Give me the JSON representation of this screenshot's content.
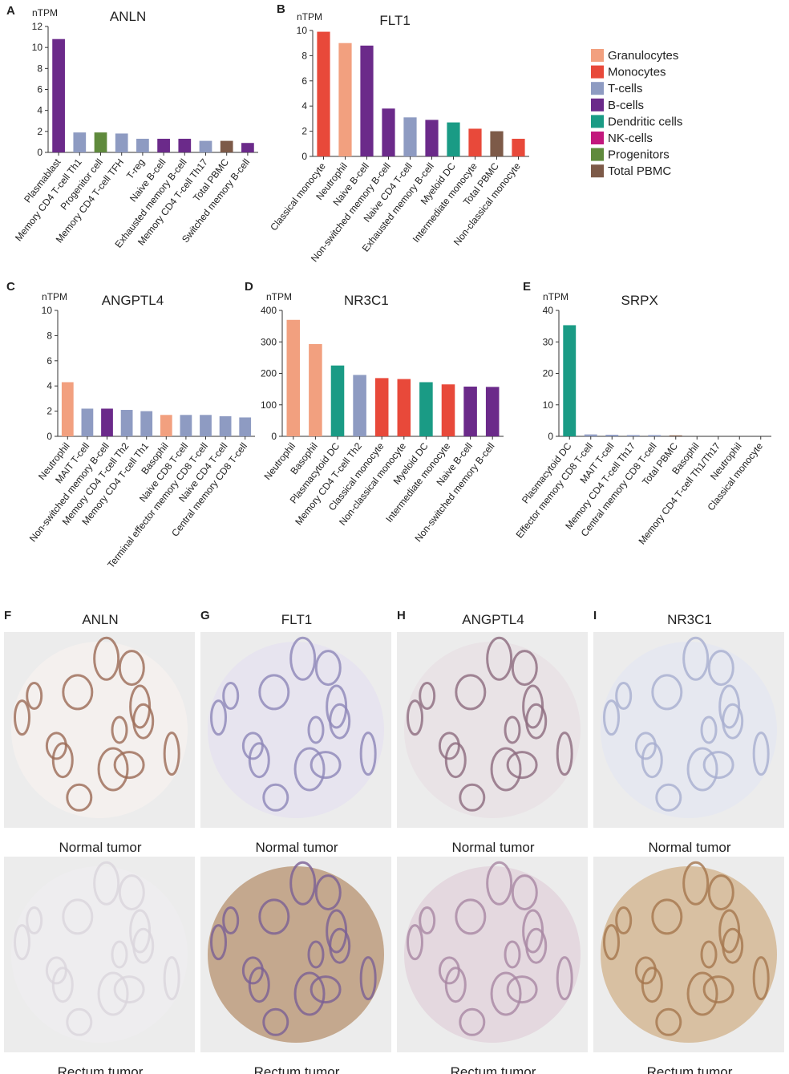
{
  "chart_data": [
    {
      "type": "bar",
      "label": "A",
      "title": "ANLN",
      "ylabel": "nTPM",
      "categories": [
        "Plasmablast",
        "Memory CD4 T-cell Th1",
        "Progenitor cell",
        "Memory CD4 T-cell TFH",
        "T-reg",
        "Naive B-cell",
        "Exhausted memory B-cell",
        "Memory CD4 T-cell Th17",
        "Total PBMC",
        "Switched memory B-cell"
      ],
      "values": [
        10.8,
        1.9,
        1.9,
        1.8,
        1.3,
        1.3,
        1.3,
        1.1,
        1.1,
        0.9
      ],
      "colors": [
        "#6b2a8a",
        "#8e9bc2",
        "#5f8a3c",
        "#8e9bc2",
        "#8e9bc2",
        "#6b2a8a",
        "#6b2a8a",
        "#8e9bc2",
        "#7d5a48",
        "#6b2a8a"
      ],
      "ylim": [
        0,
        12
      ],
      "yticks": [
        0,
        2,
        4,
        6,
        8,
        10,
        12
      ]
    },
    {
      "type": "bar",
      "label": "B",
      "title": "FLT1",
      "ylabel": "nTPM",
      "categories": [
        "Classical monocyte",
        "Neutrophil",
        "Naive B-cell",
        "Non-switched memory B-cell",
        "Naive CD4 T-cell",
        "Exhausted memory B-cell",
        "Myeloid DC",
        "Intermediate monocyte",
        "Total PBMC",
        "Non-classical monocyte"
      ],
      "values": [
        9.9,
        9.0,
        8.8,
        3.8,
        3.1,
        2.9,
        2.7,
        2.2,
        2.0,
        1.4
      ],
      "colors": [
        "#e8493a",
        "#f2a07f",
        "#6b2a8a",
        "#6b2a8a",
        "#8e9bc2",
        "#6b2a8a",
        "#1a9b85",
        "#e8493a",
        "#7d5a48",
        "#e8493a"
      ],
      "ylim": [
        0,
        10
      ],
      "yticks": [
        0,
        2,
        4,
        6,
        8,
        10
      ]
    },
    {
      "type": "bar",
      "label": "C",
      "title": "ANGPTL4",
      "ylabel": "nTPM",
      "categories": [
        "Neutrophil",
        "MAIT T-cell",
        "Non-switched memory B-cell",
        "Memory CD4 T-cell Th2",
        "Memory CD4 T-cell Th1",
        "Basophil",
        "Naive CD8 T-cell",
        "Terminal effector memory CD8 T-cell",
        "Naive CD4 T-cell",
        "Central memory CD8 T-cell"
      ],
      "values": [
        4.3,
        2.2,
        2.2,
        2.1,
        2.0,
        1.7,
        1.7,
        1.7,
        1.6,
        1.5
      ],
      "colors": [
        "#f2a07f",
        "#8e9bc2",
        "#6b2a8a",
        "#8e9bc2",
        "#8e9bc2",
        "#f2a07f",
        "#8e9bc2",
        "#8e9bc2",
        "#8e9bc2",
        "#8e9bc2"
      ],
      "ylim": [
        0,
        10
      ],
      "yticks": [
        0,
        2,
        4,
        6,
        8,
        10
      ]
    },
    {
      "type": "bar",
      "label": "D",
      "title": "NR3C1",
      "ylabel": "nTPM",
      "categories": [
        "Neutrophil",
        "Basophil",
        "Plasmacytoid DC",
        "Memory CD4 T-cell Th2",
        "Classical monocyte",
        "Non-classical monocyte",
        "Myeloid DC",
        "Intermediate monocyte",
        "Naive B-cell",
        "Non-switched memory B-cell"
      ],
      "values": [
        370,
        293,
        225,
        195,
        185,
        182,
        172,
        165,
        158,
        157
      ],
      "colors": [
        "#f2a07f",
        "#f2a07f",
        "#1a9b85",
        "#8e9bc2",
        "#e8493a",
        "#e8493a",
        "#1a9b85",
        "#e8493a",
        "#6b2a8a",
        "#6b2a8a"
      ],
      "ylim": [
        0,
        400
      ],
      "yticks": [
        0,
        100,
        200,
        300,
        400
      ]
    },
    {
      "type": "bar",
      "label": "E",
      "title": "SRPX",
      "ylabel": "nTPM",
      "categories": [
        "Plasmacytoid DC",
        "Effector memory CD8 T-cell",
        "MAIT T-cell",
        "Memory CD4 T-cell Th17",
        "Central memory CD8 T-cell",
        "Total PBMC",
        "Basophil",
        "Memory CD4 T-cell Th1/Th17",
        "Neutrophil",
        "Classical monocyte"
      ],
      "values": [
        35.3,
        0.6,
        0.5,
        0.4,
        0.4,
        0.3,
        0,
        0,
        0,
        0
      ],
      "colors": [
        "#1a9b85",
        "#8e9bc2",
        "#8e9bc2",
        "#8e9bc2",
        "#8e9bc2",
        "#7d5a48",
        "#f2a07f",
        "#8e9bc2",
        "#f2a07f",
        "#e8493a"
      ],
      "ylim": [
        0,
        40
      ],
      "yticks": [
        0,
        10,
        20,
        30,
        40
      ]
    }
  ],
  "legend": [
    {
      "name": "Granulocytes",
      "color": "#f2a07f"
    },
    {
      "name": "Monocytes",
      "color": "#e8493a"
    },
    {
      "name": "T-cells",
      "color": "#8e9bc2"
    },
    {
      "name": "B-cells",
      "color": "#6b2a8a"
    },
    {
      "name": "Dendritic cells",
      "color": "#1a9b85"
    },
    {
      "name": "NK-cells",
      "color": "#c2187d"
    },
    {
      "name": "Progenitors",
      "color": "#5f8a3c"
    },
    {
      "name": "Total PBMC",
      "color": "#7d5a48"
    }
  ],
  "tissue_panels": [
    {
      "label": "F",
      "title": "ANLN",
      "captions": [
        "Normal tumor",
        "Rectum tumor"
      ]
    },
    {
      "label": "G",
      "title": "FLT1",
      "captions": [
        "Normal tumor",
        "Rectum tumor"
      ]
    },
    {
      "label": "H",
      "title": "ANGPTL4",
      "captions": [
        "Normal tumor",
        "Rectum tumor"
      ]
    },
    {
      "label": "I",
      "title": "NR3C1",
      "captions": [
        "Normal tumor",
        "Rectum tumor"
      ]
    }
  ]
}
